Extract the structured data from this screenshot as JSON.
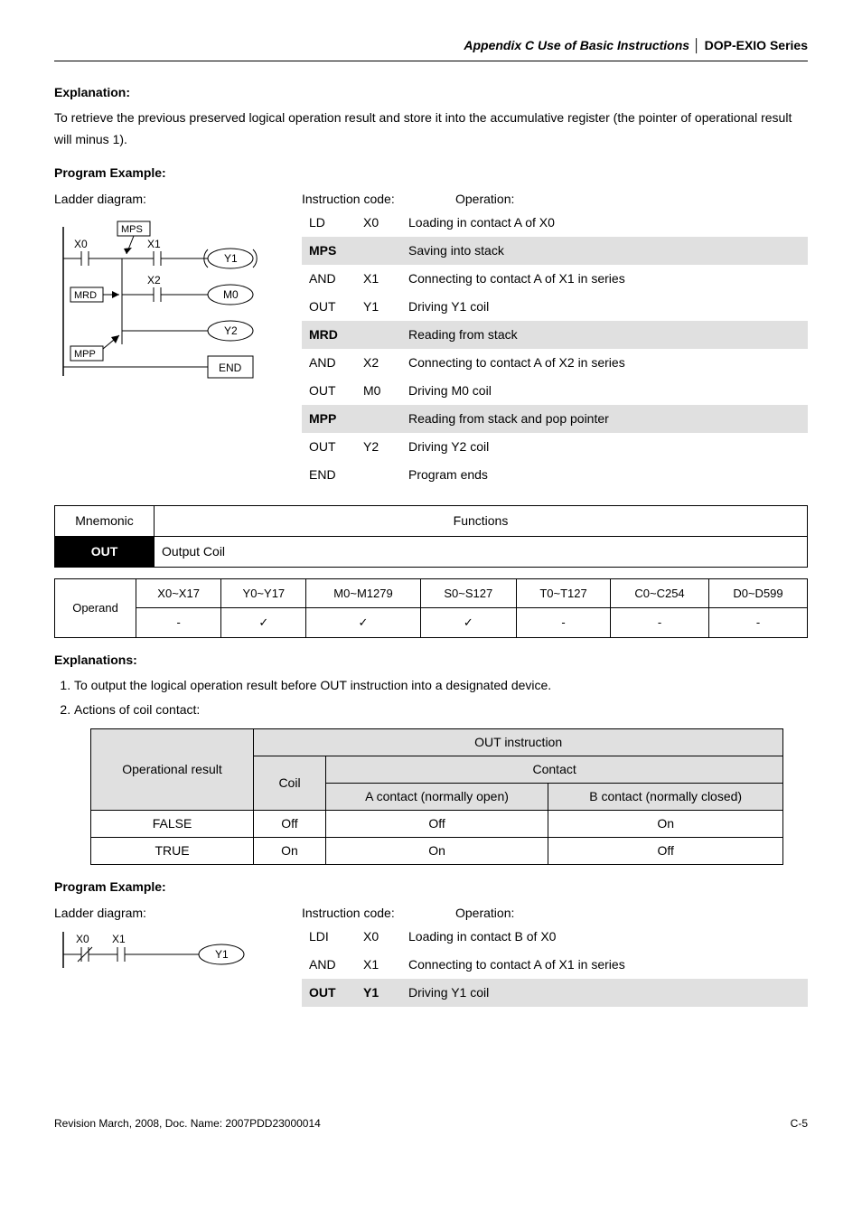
{
  "header": {
    "title": "Appendix C Use of Basic Instructions",
    "sep": "│",
    "series": "DOP-EXIO Series"
  },
  "sec1": {
    "head": "Explanation:",
    "p1": "To retrieve the previous preserved logical operation result and store it into the accumulative register (the pointer of operational result will minus 1)."
  },
  "ex1": {
    "head": "Program Example:",
    "ladder_label": "Ladder diagram:",
    "code_label": "Instruction code:",
    "op_label": "Operation:",
    "diagram": {
      "X0": "X0",
      "X1": "X1",
      "X2": "X2",
      "Y1": "Y1",
      "M0": "M0",
      "Y2": "Y2",
      "MPS": "MPS",
      "MRD": "MRD",
      "MPP": "MPP",
      "END": "END"
    },
    "rows": [
      {
        "c": "LD",
        "a": "X0",
        "o": "Loading in contact A of X0"
      },
      {
        "c": "MPS",
        "a": "",
        "o": "Saving into stack",
        "shaded": true
      },
      {
        "c": "AND",
        "a": "X1",
        "o": "Connecting to contact A of X1 in series"
      },
      {
        "c": "OUT",
        "a": "Y1",
        "o": "Driving Y1 coil"
      },
      {
        "c": "MRD",
        "a": "",
        "o": "Reading from stack",
        "shaded": true
      },
      {
        "c": "AND",
        "a": "X2",
        "o": "Connecting to contact A of X2 in series"
      },
      {
        "c": "OUT",
        "a": "M0",
        "o": "Driving M0 coil"
      },
      {
        "c": "MPP",
        "a": "",
        "o": "Reading from stack and pop pointer",
        "shaded": true
      },
      {
        "c": "OUT",
        "a": "Y2",
        "o": "Driving Y2 coil"
      },
      {
        "c": "END",
        "a": "",
        "o": "Program ends"
      }
    ]
  },
  "mnemonic": {
    "h1": "Mnemonic",
    "h2": "Functions",
    "code": "OUT",
    "desc": "Output Coil"
  },
  "operand": {
    "rowhead": "Operand",
    "cols": [
      "X0~X17",
      "Y0~Y17",
      "M0~M1279",
      "S0~S127",
      "T0~T127",
      "C0~C254",
      "D0~D599"
    ],
    "vals": [
      "-",
      "✓",
      "✓",
      "✓",
      "-",
      "-",
      "-"
    ]
  },
  "sec2": {
    "head": "Explanations:",
    "li1": "To output the logical operation result before OUT instruction into a designated device.",
    "li2": "Actions of coil contact:"
  },
  "outtable": {
    "h_result": "Operational result",
    "h_out": "OUT instruction",
    "h_coil": "Coil",
    "h_contact": "Contact",
    "h_a": "A contact (normally open)",
    "h_b": "B contact (normally closed)",
    "r1": {
      "res": "FALSE",
      "coil": "Off",
      "a": "Off",
      "b": "On"
    },
    "r2": {
      "res": "TRUE",
      "coil": "On",
      "a": "On",
      "b": "Off"
    }
  },
  "ex2": {
    "head": "Program Example:",
    "ladder_label": "Ladder diagram:",
    "code_label": "Instruction code:",
    "op_label": "Operation:",
    "diagram": {
      "X0": "X0",
      "X1": "X1",
      "Y1": "Y1"
    },
    "rows": [
      {
        "c": "LDI",
        "a": "X0",
        "o": "Loading in contact B of X0"
      },
      {
        "c": "AND",
        "a": "X1",
        "o": "Connecting to contact A of X1 in series"
      },
      {
        "c": "OUT",
        "a": "Y1",
        "o": "Driving Y1 coil",
        "shaded": true
      }
    ]
  },
  "footer": {
    "left": "Revision March, 2008, Doc. Name: 2007PDD23000014",
    "right": "C-5"
  }
}
